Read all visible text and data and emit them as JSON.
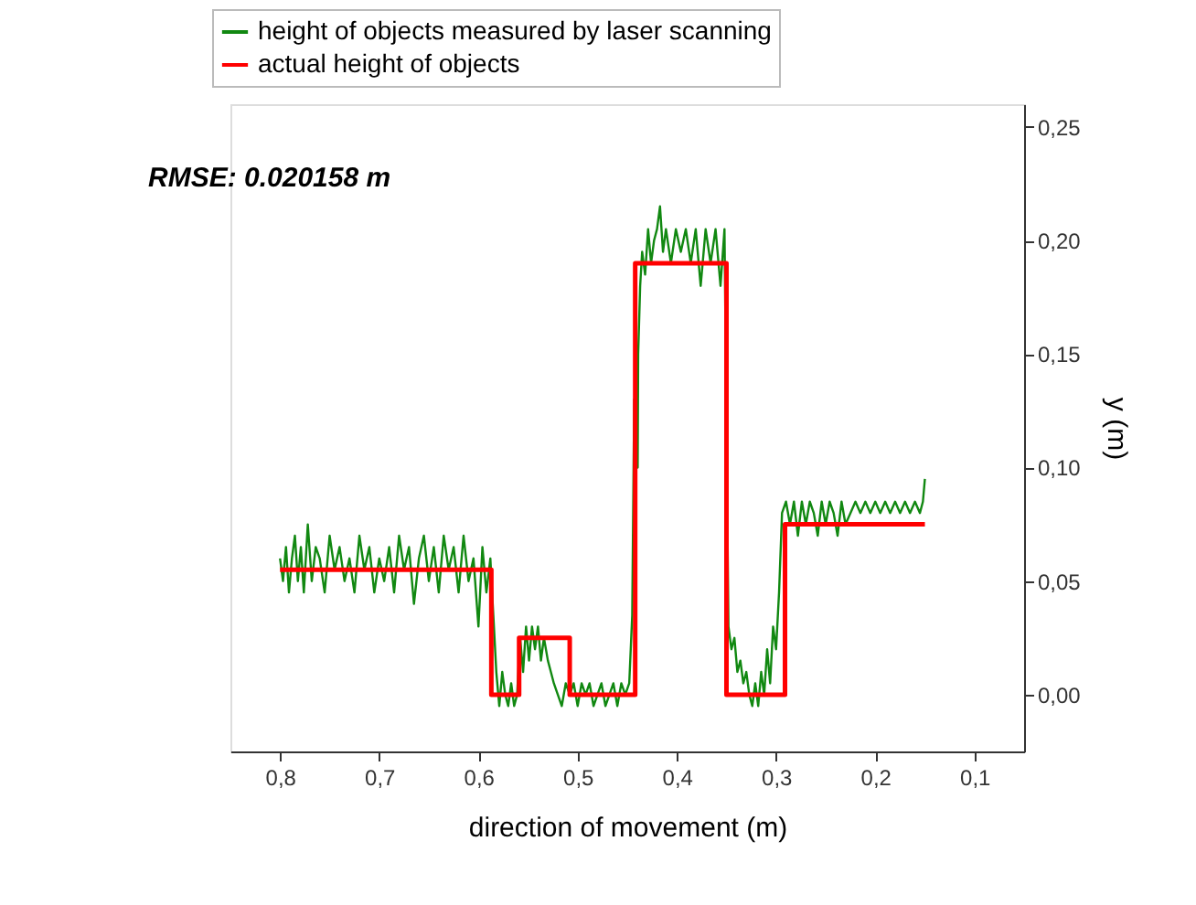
{
  "chart_data": {
    "type": "line",
    "xlabel": "direction of movement (m)",
    "ylabel": "y (m)",
    "annotations": [
      "RMSE: 0.020158 m"
    ],
    "xlim": [
      0.85,
      0.05
    ],
    "ylim": [
      -0.025,
      0.26
    ],
    "xticks": [
      {
        "value": 0.8,
        "label": "0,8"
      },
      {
        "value": 0.7,
        "label": "0,7"
      },
      {
        "value": 0.6,
        "label": "0,6"
      },
      {
        "value": 0.5,
        "label": "0,5"
      },
      {
        "value": 0.4,
        "label": "0,4"
      },
      {
        "value": 0.3,
        "label": "0,3"
      },
      {
        "value": 0.2,
        "label": "0,2"
      },
      {
        "value": 0.1,
        "label": "0,1"
      }
    ],
    "yticks": [
      {
        "value": 0,
        "label": "0,00"
      },
      {
        "value": 0.05,
        "label": "0,05"
      },
      {
        "value": 0.1,
        "label": "0,10"
      },
      {
        "value": 0.15,
        "label": "0,15"
      },
      {
        "value": 0.2,
        "label": "0,20"
      },
      {
        "value": 0.25,
        "label": "0,25"
      }
    ],
    "grid": false,
    "legend": "top left",
    "line_style": "solid",
    "marker": "none",
    "series": [
      {
        "name": "height of objects measured by laser scanning",
        "color": "#118811",
        "x": [
          0.8,
          0.797,
          0.794,
          0.791,
          0.788,
          0.785,
          0.782,
          0.779,
          0.776,
          0.772,
          0.768,
          0.764,
          0.76,
          0.755,
          0.75,
          0.745,
          0.74,
          0.735,
          0.73,
          0.725,
          0.72,
          0.715,
          0.71,
          0.705,
          0.7,
          0.695,
          0.69,
          0.685,
          0.68,
          0.675,
          0.67,
          0.665,
          0.66,
          0.655,
          0.65,
          0.645,
          0.64,
          0.635,
          0.63,
          0.625,
          0.62,
          0.615,
          0.61,
          0.605,
          0.6,
          0.596,
          0.592,
          0.588,
          0.585,
          0.582,
          0.579,
          0.576,
          0.573,
          0.57,
          0.567,
          0.564,
          0.561,
          0.558,
          0.555,
          0.552,
          0.549,
          0.546,
          0.543,
          0.54,
          0.537,
          0.534,
          0.53,
          0.527,
          0.524,
          0.52,
          0.516,
          0.512,
          0.508,
          0.504,
          0.5,
          0.496,
          0.492,
          0.488,
          0.484,
          0.48,
          0.476,
          0.472,
          0.468,
          0.464,
          0.46,
          0.456,
          0.452,
          0.448,
          0.445,
          0.443,
          0.4395,
          0.439,
          0.437,
          0.435,
          0.432,
          0.429,
          0.426,
          0.423,
          0.42,
          0.417,
          0.414,
          0.411,
          0.406,
          0.401,
          0.396,
          0.391,
          0.386,
          0.381,
          0.376,
          0.371,
          0.366,
          0.361,
          0.356,
          0.352,
          0.348,
          0.345,
          0.342,
          0.339,
          0.336,
          0.333,
          0.33,
          0.327,
          0.324,
          0.321,
          0.318,
          0.315,
          0.312,
          0.309,
          0.306,
          0.303,
          0.3,
          0.297,
          0.294,
          0.29,
          0.286,
          0.282,
          0.278,
          0.274,
          0.27,
          0.266,
          0.262,
          0.258,
          0.254,
          0.25,
          0.246,
          0.242,
          0.238,
          0.234,
          0.23,
          0.225,
          0.22,
          0.215,
          0.21,
          0.205,
          0.2,
          0.195,
          0.19,
          0.185,
          0.18,
          0.175,
          0.17,
          0.165,
          0.16,
          0.155,
          0.152,
          0.15
        ],
        "values": [
          0.06,
          0.05,
          0.065,
          0.045,
          0.06,
          0.07,
          0.05,
          0.065,
          0.045,
          0.075,
          0.05,
          0.065,
          0.06,
          0.045,
          0.07,
          0.055,
          0.065,
          0.05,
          0.06,
          0.045,
          0.07,
          0.055,
          0.065,
          0.045,
          0.06,
          0.05,
          0.065,
          0.045,
          0.07,
          0.055,
          0.065,
          0.04,
          0.06,
          0.07,
          0.05,
          0.065,
          0.045,
          0.07,
          0.055,
          0.065,
          0.045,
          0.07,
          0.05,
          0.06,
          0.03,
          0.065,
          0.045,
          0.06,
          0.035,
          0.01,
          -0.005,
          0.01,
          0.0,
          -0.005,
          0.005,
          -0.005,
          0.0,
          0.025,
          0.01,
          0.03,
          0.015,
          0.03,
          0.02,
          0.03,
          0.015,
          0.025,
          0.015,
          0.01,
          0.005,
          0.0,
          -0.005,
          0.005,
          0.0,
          0.005,
          -0.005,
          0.005,
          0.0,
          0.005,
          -0.005,
          0.0,
          0.005,
          -0.005,
          0.0,
          0.005,
          -0.005,
          0.005,
          0.0,
          0.005,
          0.035,
          0.13,
          0.1,
          0.15,
          0.18,
          0.195,
          0.185,
          0.205,
          0.19,
          0.2,
          0.205,
          0.215,
          0.195,
          0.205,
          0.19,
          0.205,
          0.195,
          0.205,
          0.19,
          0.205,
          0.18,
          0.205,
          0.19,
          0.205,
          0.18,
          0.205,
          0.03,
          0.02,
          0.025,
          0.01,
          0.015,
          0.005,
          0.01,
          0.0,
          -0.005,
          0.005,
          -0.005,
          0.01,
          0.0,
          0.02,
          0.005,
          0.03,
          0.02,
          0.045,
          0.08,
          0.085,
          0.075,
          0.085,
          0.07,
          0.085,
          0.075,
          0.085,
          0.08,
          0.07,
          0.085,
          0.075,
          0.085,
          0.08,
          0.07,
          0.085,
          0.075,
          0.08,
          0.085,
          0.08,
          0.085,
          0.08,
          0.085,
          0.08,
          0.085,
          0.08,
          0.085,
          0.08,
          0.085,
          0.08,
          0.085,
          0.08,
          0.085,
          0.095
        ]
      },
      {
        "name": "actual height of objects",
        "color": "#ff0000",
        "x": [
          0.8,
          0.587,
          0.587,
          0.559,
          0.559,
          0.508,
          0.508,
          0.442,
          0.442,
          0.35,
          0.35,
          0.291,
          0.291,
          0.15
        ],
        "values": [
          0.055,
          0.055,
          0,
          0,
          0.025,
          0.025,
          0,
          0,
          0.19,
          0.19,
          0,
          0,
          0.075,
          0.075
        ]
      }
    ]
  }
}
